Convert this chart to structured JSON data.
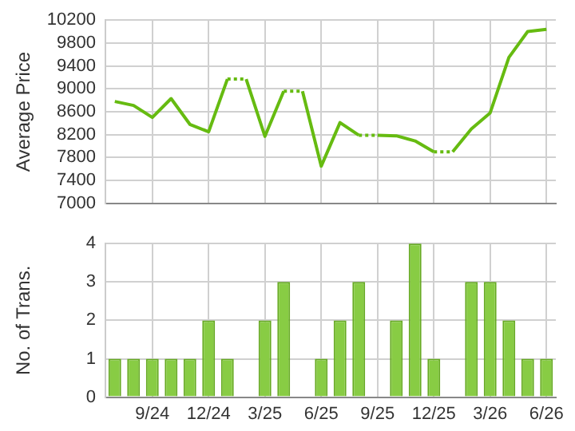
{
  "chart_data": [
    {
      "type": "line",
      "ylabel": "Average Price",
      "categories": [
        null,
        null,
        null,
        null,
        null,
        null,
        null,
        null,
        null,
        null,
        null,
        null,
        null,
        null,
        null,
        null,
        null,
        null,
        null,
        null,
        null,
        null,
        null,
        null
      ],
      "series": [
        {
          "color": "#66bb11",
          "values": [
            8780,
            8710,
            8500,
            8830,
            8380,
            8250,
            9170,
            9170,
            8170,
            8960,
            8960,
            7650,
            8410,
            8190,
            8190,
            8180,
            8090,
            7900,
            7900,
            8300,
            8580,
            9550,
            10000,
            10040
          ]
        }
      ],
      "ylim": [
        7000,
        10200
      ],
      "yticks": [
        7000,
        7400,
        7800,
        8200,
        8600,
        9000,
        9400,
        9800,
        10200
      ],
      "grid": true,
      "tick_labels": "y",
      "marker": "none"
    },
    {
      "type": "bar",
      "ylabel": "No. of Trans.",
      "categories": [
        null,
        null,
        "9/24",
        null,
        null,
        "12/24",
        null,
        null,
        "3/25",
        null,
        null,
        "6/25",
        null,
        null,
        "9/25",
        null,
        null,
        "12/25",
        null,
        null,
        "3/26",
        null,
        null,
        "6/26"
      ],
      "series": [
        {
          "color": "#88cc44",
          "values": [
            1,
            1,
            1,
            1,
            1,
            2,
            1,
            0,
            2,
            3,
            0,
            1,
            2,
            3,
            0,
            2,
            4,
            1,
            0,
            3,
            3,
            2,
            1,
            1
          ]
        }
      ],
      "ylim": [
        0,
        4
      ],
      "yticks": [
        0,
        1,
        2,
        3,
        4
      ],
      "grid": true
    }
  ]
}
